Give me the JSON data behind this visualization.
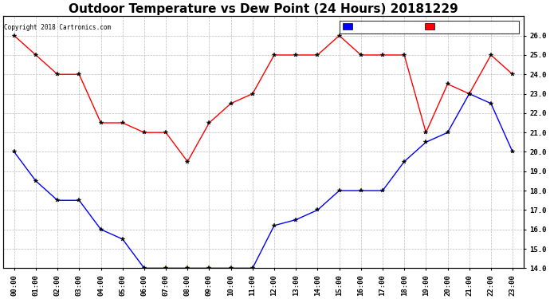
{
  "title": "Outdoor Temperature vs Dew Point (24 Hours) 20181229",
  "copyright_text": "Copyright 2018 Cartronics.com",
  "hours": [
    "00:00",
    "01:00",
    "02:00",
    "03:00",
    "04:00",
    "05:00",
    "06:00",
    "07:00",
    "08:00",
    "09:00",
    "10:00",
    "11:00",
    "12:00",
    "13:00",
    "14:00",
    "15:00",
    "16:00",
    "17:00",
    "18:00",
    "19:00",
    "20:00",
    "21:00",
    "22:00",
    "23:00"
  ],
  "dew_point": [
    20.0,
    18.5,
    17.5,
    17.5,
    16.0,
    15.5,
    14.0,
    14.0,
    14.0,
    14.0,
    14.0,
    14.0,
    16.2,
    16.5,
    17.0,
    18.0,
    18.0,
    18.0,
    19.5,
    20.5,
    21.0,
    23.0,
    22.5,
    20.0
  ],
  "temperature": [
    26.0,
    25.0,
    24.0,
    24.0,
    21.5,
    21.5,
    21.0,
    21.0,
    19.5,
    21.5,
    22.5,
    23.0,
    25.0,
    25.0,
    25.0,
    26.0,
    25.0,
    25.0,
    25.0,
    21.0,
    23.5,
    23.0,
    25.0,
    24.0
  ],
  "dew_color": "blue",
  "temp_color": "red",
  "marker": "*",
  "ylim": [
    14.0,
    27.0
  ],
  "yticks": [
    14.0,
    15.0,
    16.0,
    17.0,
    18.0,
    19.0,
    20.0,
    21.0,
    22.0,
    23.0,
    24.0,
    25.0,
    26.0
  ],
  "background_color": "white",
  "grid_color": "#bbbbbb",
  "title_fontsize": 11,
  "tick_fontsize": 6.5,
  "legend_fontsize": 7.5,
  "line_width": 1.0,
  "marker_size": 4
}
